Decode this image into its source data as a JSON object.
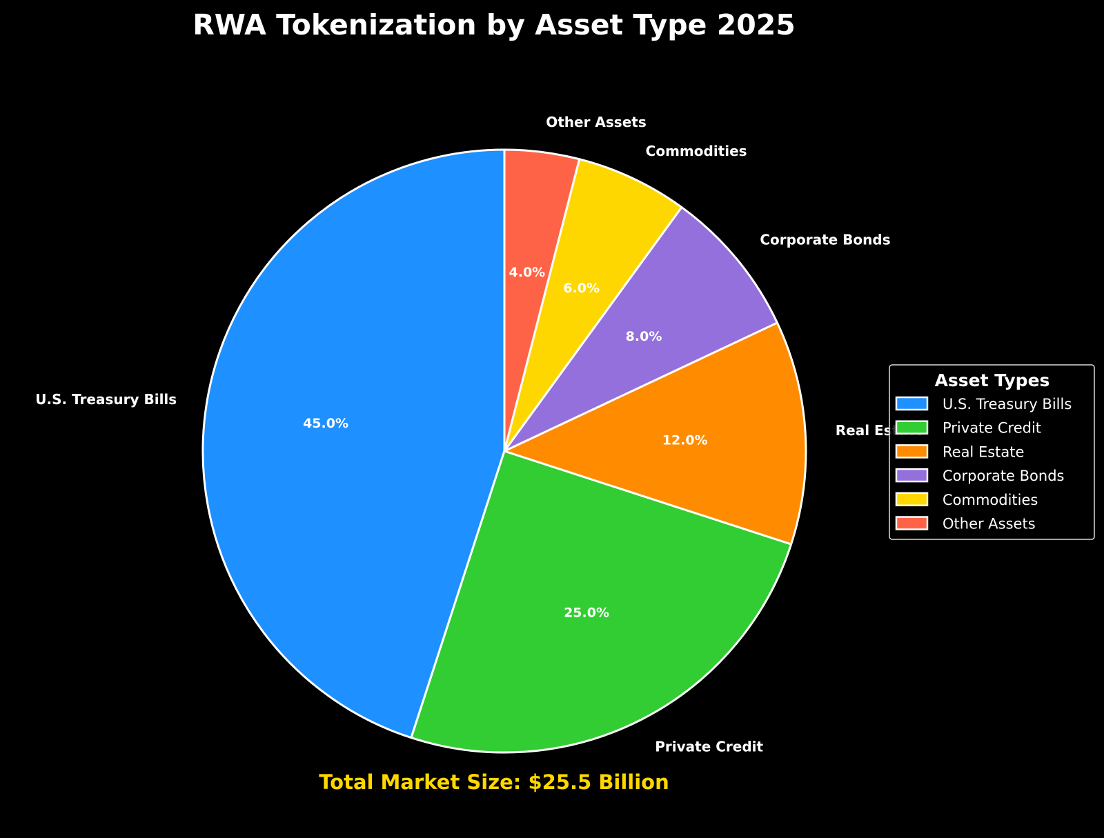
{
  "chart_data": {
    "type": "pie",
    "title": "RWA Tokenization by Asset Type 2025",
    "categories": [
      "U.S. Treasury Bills",
      "Private Credit",
      "Real Estate",
      "Corporate Bonds",
      "Commodities",
      "Other Assets"
    ],
    "values": [
      45.0,
      25.0,
      12.0,
      8.0,
      6.0,
      4.0
    ],
    "value_labels": [
      "45.0%",
      "25.0%",
      "12.0%",
      "8.0%",
      "6.0%",
      "4.0%"
    ],
    "colors": [
      "#1E90FF",
      "#32CD32",
      "#FF8C00",
      "#9370DB",
      "#FFD700",
      "#FF6347"
    ],
    "start_angle_deg": 90,
    "direction": "counterclockwise",
    "wedge_edge_color": "#FFFFFF",
    "background": "#000000",
    "legend": {
      "title": "Asset Types",
      "placement": "right"
    },
    "annotation": "Total Market Size: $25.5 Billion",
    "annotation_color": "#FFD700"
  }
}
